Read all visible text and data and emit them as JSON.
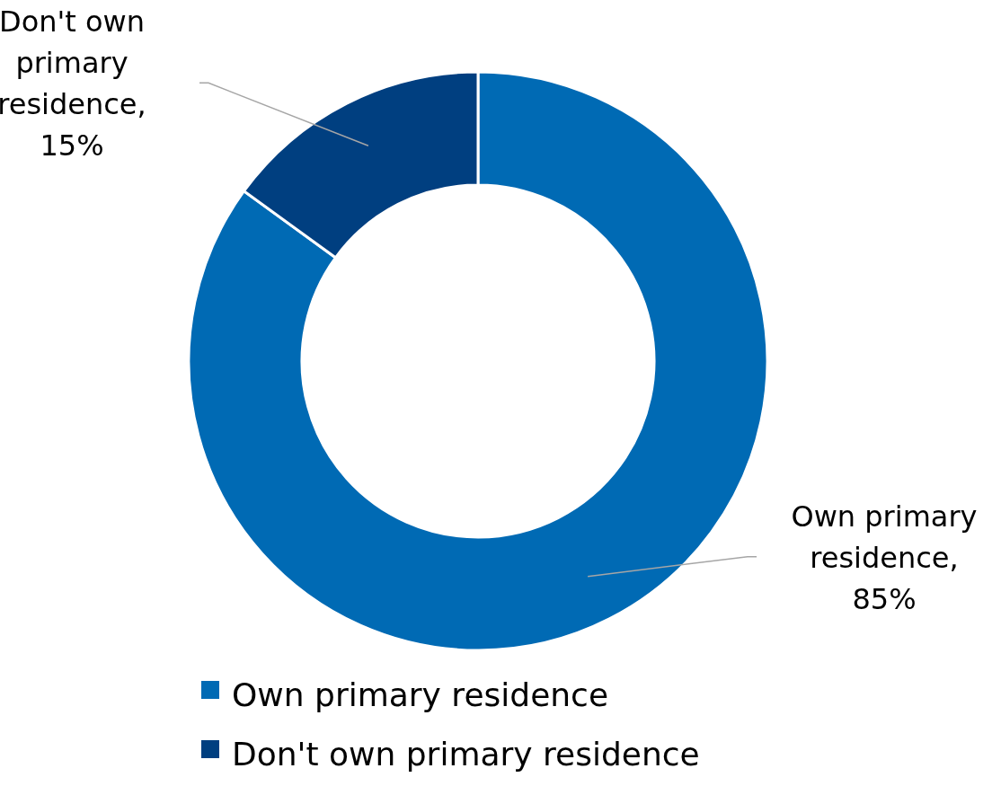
{
  "chart_data": {
    "type": "donut",
    "categories": [
      "Own primary residence",
      "Don't own primary residence"
    ],
    "values": [
      85,
      15
    ],
    "value_labels": [
      "Own primary residence, 85%",
      "Don't own primary residence, 15%"
    ],
    "colors": [
      "#006ab4",
      "#003f80"
    ],
    "legend": "bottom"
  }
}
